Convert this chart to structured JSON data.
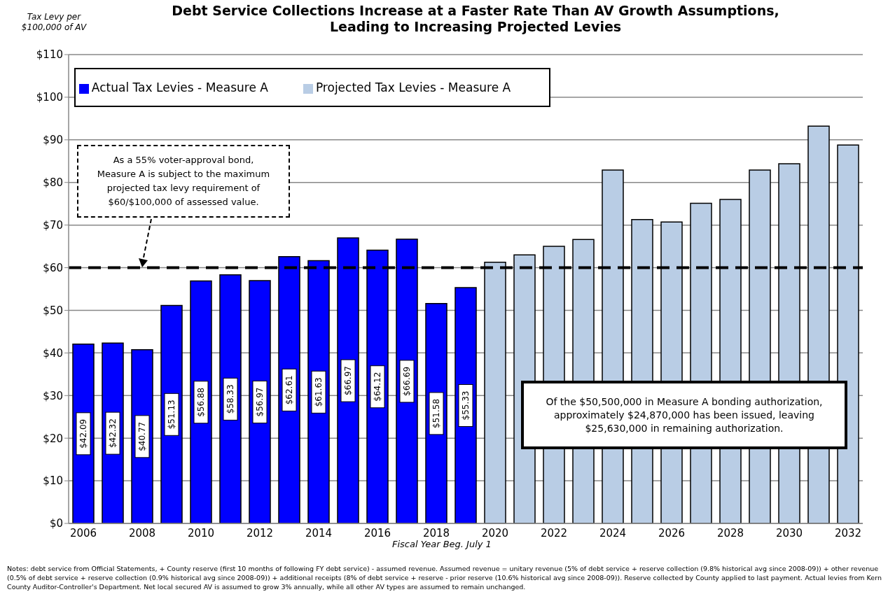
{
  "chart_data": {
    "type": "bar",
    "title": "Debt Service Collections Increase at a Faster Rate Than AV Growth Assumptions,\nLeading to Increasing Projected Levies",
    "ylabel": "Tax Levy per\n$100,000 of AV",
    "xlabel": "Fiscal Year Beg. July 1",
    "categories": [
      "2006",
      null,
      "2008",
      null,
      "2010",
      null,
      "2012",
      null,
      "2014",
      null,
      "2016",
      null,
      "2018",
      null,
      "2020",
      null,
      "2022",
      null,
      "2024",
      null,
      "2026",
      null,
      "2028",
      null,
      "2030",
      null,
      "2032"
    ],
    "stacked": true,
    "series": [
      {
        "name": "Actual Tax Levies - Measure A",
        "color": "#0000ff",
        "values": [
          42.09,
          42.32,
          40.77,
          51.13,
          56.88,
          58.33,
          56.97,
          62.61,
          61.63,
          66.97,
          64.12,
          66.69,
          51.58,
          55.33,
          null,
          null,
          null,
          null,
          null,
          null,
          null,
          null,
          null,
          null,
          null,
          null,
          null
        ],
        "value_labels": [
          "$42.09",
          "$42.32",
          "$40.77",
          "$51.13",
          "$56.88",
          "$58.33",
          "$56.97",
          "$62.61",
          "$61.63",
          "$66.97",
          "$64.12",
          "$66.69",
          "$51.58",
          "$55.33",
          null,
          null,
          null,
          null,
          null,
          null,
          null,
          null,
          null,
          null,
          null,
          null,
          null
        ]
      },
      {
        "name": "Projected Tax Levies - Measure A",
        "color": "#b9cde5",
        "values": [
          null,
          null,
          null,
          null,
          null,
          null,
          null,
          null,
          null,
          null,
          null,
          null,
          null,
          null,
          61.3,
          63,
          65,
          66.6,
          82.9,
          71.3,
          70.7,
          75.1,
          76,
          82.9,
          84.4,
          93.2,
          88.8
        ]
      }
    ],
    "ylim": [
      0,
      110
    ],
    "yticks": [
      {
        "value": 0,
        "label": "$0"
      },
      {
        "value": 10,
        "label": "$10"
      },
      {
        "value": 20,
        "label": "$20"
      },
      {
        "value": 30,
        "label": "$30"
      },
      {
        "value": 40,
        "label": "$40"
      },
      {
        "value": 50,
        "label": "$50"
      },
      {
        "value": 60,
        "label": "$60"
      },
      {
        "value": 70,
        "label": "$70"
      },
      {
        "value": 80,
        "label": "$80"
      },
      {
        "value": 90,
        "label": "$90"
      },
      {
        "value": 100,
        "label": "$100"
      },
      {
        "value": 110,
        "label": "$110"
      }
    ],
    "grid": "y",
    "legend": "top",
    "ref_lines": [
      {
        "axis": "y",
        "value": 60,
        "color": "#000000",
        "line_style": "dashed"
      }
    ],
    "annotations": [
      "As a 55% voter-approval bond,\nMeasure A is subject to the maximum\nprojected tax levy requirement of\n$60/$100,000 of assessed value.",
      "Of the $50,500,000 in Measure A bonding authorization,\napproximately $24,870,000 has been issued, leaving\n$25,630,000 in remaining authorization.",
      "Notes: debt service from Official Statements, + County reserve (first 10 months of following FY debt service) - assumed revenue. Assumed revenue = unitary revenue (5% of debt service + reserve collection (9.8% historical avg since 2008-09)) + other revenue (0.5% of debt service + reserve collection (0.9% historical avg since 2008-09)) + additional receipts (8% of debt service + reserve - prior reserve (10.6% historical avg since 2008-09)). Reserve collected by County applied to last payment. Actual levies from Kern County Auditor-Controller's Department. Net local secured AV is assumed to grow 3% annually, while all other AV types are assumed to remain unchanged."
    ]
  }
}
